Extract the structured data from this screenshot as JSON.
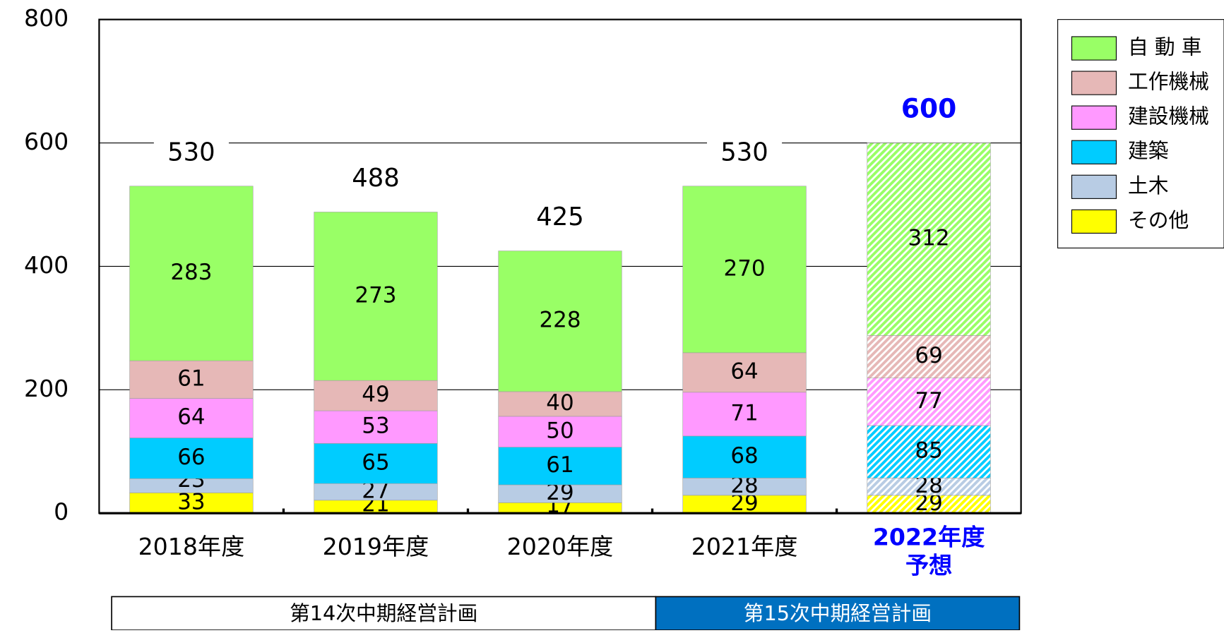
{
  "chart_data": {
    "type": "stacked_bar",
    "categories": [
      "2018年度",
      "2019年度",
      "2020年度",
      "2021年度",
      "2022年度\n予想"
    ],
    "series": [
      {
        "name": "その他",
        "color": "#ffff00",
        "values": [
          33,
          21,
          17,
          29,
          29
        ]
      },
      {
        "name": "土木",
        "color": "#b8cce4",
        "values": [
          23,
          27,
          29,
          28,
          28
        ]
      },
      {
        "name": "建築",
        "color": "#00ccff",
        "values": [
          66,
          65,
          61,
          68,
          85
        ]
      },
      {
        "name": "建設機械",
        "color": "#ff99ff",
        "values": [
          64,
          53,
          50,
          71,
          77
        ]
      },
      {
        "name": "工作機械",
        "color": "#e6b8b7",
        "values": [
          61,
          49,
          40,
          64,
          69
        ]
      },
      {
        "name": "自 動 車",
        "color": "#99ff66",
        "values": [
          283,
          273,
          228,
          270,
          312
        ]
      }
    ],
    "totals": [
      530,
      488,
      425,
      530,
      600
    ],
    "hatched": [
      false,
      false,
      false,
      false,
      true
    ],
    "highlight_color": "#0000ff",
    "ylim": [
      0,
      800
    ],
    "yticks": [
      0,
      200,
      400,
      600,
      800
    ],
    "grid": true,
    "legend": "upper right",
    "plans": [
      {
        "label": "第14次中期経営計画"
      },
      {
        "label": "第15次中期経営計画",
        "color": "#0070c0"
      }
    ]
  }
}
